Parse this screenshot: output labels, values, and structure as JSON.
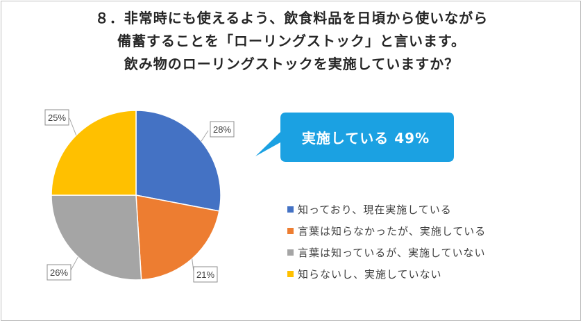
{
  "title": {
    "line1": "８．非常時にも使えるよう、飲食料品を日頃から使いながら",
    "line2": "備蓄することを「ローリングストック」と言います。",
    "line3": "飲み物のローリングストックを実施していますか？"
  },
  "callout": {
    "text": "実施している 49%",
    "color": "#1BA1E2"
  },
  "chart_data": {
    "type": "pie",
    "slices": [
      {
        "name": "知っており、現在実施している",
        "value": 28,
        "label": "28%",
        "color": "#4472C4"
      },
      {
        "name": "言葉は知らなかったが、実施している",
        "value": 21,
        "label": "21%",
        "color": "#ED7D31"
      },
      {
        "name": "言葉は知っているが、実施していない",
        "value": 26,
        "label": "26%",
        "color": "#A5A5A5"
      },
      {
        "name": "知らないし、実施していない",
        "value": 25,
        "label": "25%",
        "color": "#FFC000"
      }
    ],
    "start_angle_deg": 0,
    "direction": "clockwise",
    "legend_position": "right"
  }
}
